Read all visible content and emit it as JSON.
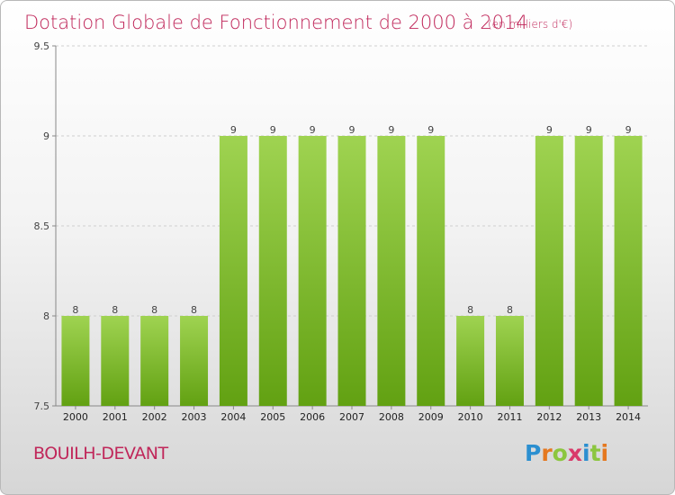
{
  "title": "Dotation Globale de Fonctionnement de 2000 à 2014",
  "subtitle": "(en milliers d'€)",
  "place_name": "BOUILH-DEVANT",
  "logo": {
    "text": "Proxiti",
    "letters": [
      "P",
      "r",
      "o",
      "x",
      "i",
      "t",
      "i"
    ]
  },
  "colors": {
    "bar_top": "#9fd351",
    "bar_bottom": "#62a112",
    "title": "#c0275a"
  },
  "chart_data": {
    "type": "bar",
    "title": "Dotation Globale de Fonctionnement de 2000 à 2014",
    "subtitle": "(en milliers d'€)",
    "xlabel": "",
    "ylabel": "",
    "categories": [
      "2000",
      "2001",
      "2002",
      "2003",
      "2004",
      "2005",
      "2006",
      "2007",
      "2008",
      "2009",
      "2010",
      "2011",
      "2012",
      "2013",
      "2014"
    ],
    "values": [
      8,
      8,
      8,
      8,
      9,
      9,
      9,
      9,
      9,
      9,
      8,
      8,
      9,
      9,
      9
    ],
    "labels": [
      "8",
      "8",
      "8",
      "8",
      "9",
      "9",
      "9",
      "9",
      "9",
      "9",
      "8",
      "8",
      "9",
      "9",
      "9"
    ],
    "ylim": [
      7.5,
      9.5
    ],
    "yticks": [
      7.5,
      8,
      8.5,
      9,
      9.5
    ],
    "ytick_labels": [
      "7.5",
      "8",
      "8.5",
      "9",
      "9.5"
    ],
    "grid": true
  }
}
